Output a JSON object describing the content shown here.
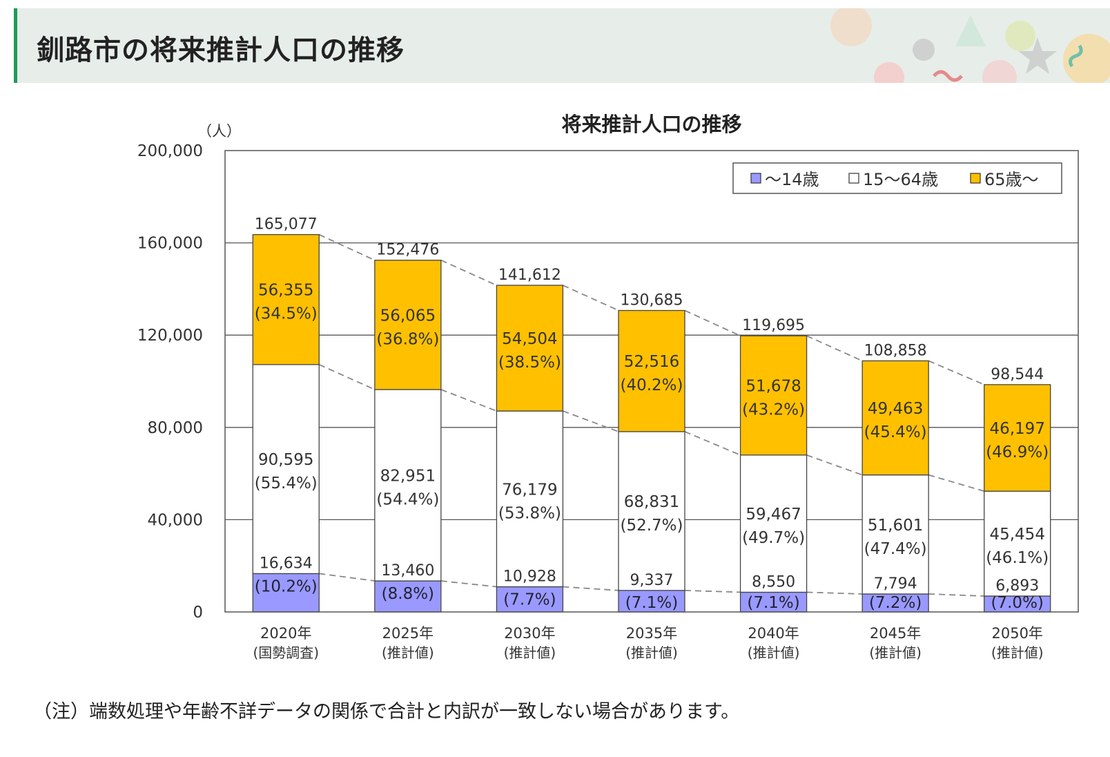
{
  "page": {
    "title": "釧路市の将来推計人口の推移",
    "footnote": "（注）端数処理や年齢不詳データの関係で合計と内訳が一致しない場合があります。"
  },
  "colors": {
    "header_bg": "#e7ede9",
    "header_accent": "#1e9a5a",
    "under14": "#9999ff",
    "age15_64": "#ffffff",
    "age65plus": "#ffc000"
  },
  "chart_data": {
    "type": "bar",
    "stacked": true,
    "title": "将来推計人口の推移",
    "yunit": "（人）",
    "ylim": [
      0,
      200000
    ],
    "yticks": [
      0,
      40000,
      80000,
      120000,
      160000,
      200000
    ],
    "ytick_labels": [
      "0",
      "40,000",
      "80,000",
      "120,000",
      "160,000",
      "200,000"
    ],
    "grid": true,
    "legend_position": "top-right",
    "categories": [
      [
        "2020年",
        "(国勢調査)"
      ],
      [
        "2025年",
        "(推計値)"
      ],
      [
        "2030年",
        "(推計値)"
      ],
      [
        "2035年",
        "(推計値)"
      ],
      [
        "2040年",
        "(推計値)"
      ],
      [
        "2045年",
        "(推計値)"
      ],
      [
        "2050年",
        "(推計値)"
      ]
    ],
    "totals": [
      165077,
      152476,
      141612,
      130685,
      119695,
      108858,
      98544
    ],
    "total_labels": [
      "165,077",
      "152,476",
      "141,612",
      "130,685",
      "119,695",
      "108,858",
      "98,544"
    ],
    "series": [
      {
        "name": "～14歳",
        "color": "#9999ff",
        "values": [
          16634,
          13460,
          10928,
          9337,
          8550,
          7794,
          6893
        ],
        "value_labels": [
          "16,634",
          "13,460",
          "10,928",
          "9,337",
          "8,550",
          "7,794",
          "6,893"
        ],
        "pct_labels": [
          "(10.2%)",
          "(8.8%)",
          "(7.7%)",
          "(7.1%)",
          "(7.1%)",
          "(7.2%)",
          "(7.0%)"
        ]
      },
      {
        "name": "15～64歳",
        "color": "#ffffff",
        "values": [
          90595,
          82951,
          76179,
          68831,
          59467,
          51601,
          45454
        ],
        "value_labels": [
          "90,595",
          "82,951",
          "76,179",
          "68,831",
          "59,467",
          "51,601",
          "45,454"
        ],
        "pct_labels": [
          "(55.4%)",
          "(54.4%)",
          "(53.8%)",
          "(52.7%)",
          "(49.7%)",
          "(47.4%)",
          "(46.1%)"
        ]
      },
      {
        "name": "65歳～",
        "color": "#ffc000",
        "values": [
          56355,
          56065,
          54504,
          52516,
          51678,
          49463,
          46197
        ],
        "value_labels": [
          "56,355",
          "56,065",
          "54,504",
          "52,516",
          "51,678",
          "49,463",
          "46,197"
        ],
        "pct_labels": [
          "(34.5%)",
          "(36.8%)",
          "(38.5%)",
          "(40.2%)",
          "(43.2%)",
          "(45.4%)",
          "(46.9%)"
        ]
      }
    ]
  }
}
